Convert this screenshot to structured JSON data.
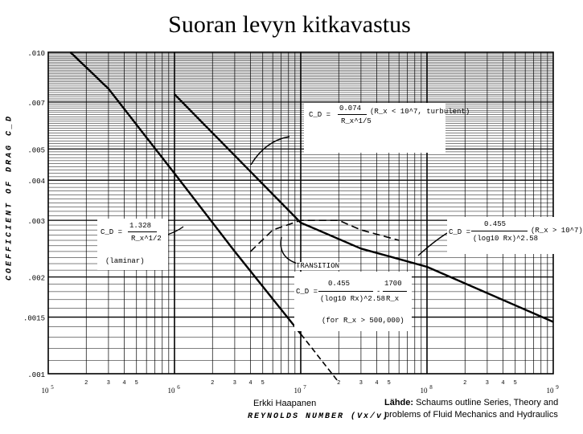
{
  "page": {
    "title": "Suoran levyn kitkavastus"
  },
  "chart_data": {
    "type": "line",
    "xscale": "log",
    "yscale": "log",
    "xlim": [
      100000,
      1000000000
    ],
    "ylim": [
      0.001,
      0.01
    ],
    "grid": true,
    "ylabel": "COEFFICIENT OF DRAG C_D",
    "xlabel": "REYNOLDS NUMBER (Vx/v)",
    "ytick_labels": [
      ".010",
      ".007",
      ".005",
      ".004",
      ".003",
      ".002",
      ".0015",
      ".001"
    ],
    "ytick_values": [
      0.01,
      0.007,
      0.005,
      0.004,
      0.003,
      0.002,
      0.0015,
      0.001
    ],
    "xtick_decades": [
      {
        "base": "10",
        "exp": "5",
        "value": 100000
      },
      {
        "base": "10",
        "exp": "6",
        "value": 1000000
      },
      {
        "base": "10",
        "exp": "7",
        "value": 10000000
      },
      {
        "base": "10",
        "exp": "8",
        "value": 100000000
      },
      {
        "base": "10",
        "exp": "9",
        "value": 1000000000
      }
    ],
    "xtick_minor_labels": [
      "2",
      "3",
      "4",
      "5"
    ],
    "series": [
      {
        "type": "laminar",
        "style": "solid",
        "x": [
          150000,
          300000,
          1000000,
          3000000,
          10000000
        ],
        "y": [
          0.01,
          0.0077,
          0.0042,
          0.0024,
          0.00133
        ]
      },
      {
        "type": "laminar-extension",
        "style": "dashed",
        "x": [
          10000000,
          20000000
        ],
        "y": [
          0.00133,
          0.00094
        ]
      },
      {
        "type": "turbulent",
        "style": "solid",
        "x": [
          1000000,
          10000000
        ],
        "y": [
          0.0074,
          0.00295
        ]
      },
      {
        "type": "turbulent-prandtl",
        "style": "solid",
        "x": [
          10000000,
          30000000,
          100000000,
          1000000000
        ],
        "y": [
          0.00295,
          0.00245,
          0.00215,
          0.00145
        ]
      },
      {
        "type": "transition",
        "style": "dashed",
        "x": [
          4000000,
          6000000,
          10000000,
          20000000,
          30000000,
          60000000
        ],
        "y": [
          0.0024,
          0.0028,
          0.003,
          0.003,
          0.0028,
          0.0026
        ]
      }
    ],
    "annotations": {
      "turbulent": {
        "lhs": "C_D =",
        "num": "0.074",
        "den": "R_x^1/5",
        "cond": "(R_x < 10^7, turbulent)"
      },
      "laminar": {
        "lhs": "C_D =",
        "num": "1.328",
        "den": "R_x^1/2",
        "cond": "(laminar)"
      },
      "prandtl": {
        "lhs": "C_D =",
        "num": "0.455",
        "den": "(log10 Rx)^2.58",
        "cond": "(R_x > 10^7)"
      },
      "transition_label": "TRANSITION",
      "transition": {
        "lhs": "C_D =",
        "num1": "0.455",
        "den1": "(log10 Rx)^2.58",
        "minus": "-",
        "num2": "1700",
        "den2": "R_x",
        "cond": "(for R_x > 500,000)"
      }
    }
  },
  "footer": {
    "author": "Erkki Haapanen",
    "source_bold": "Lähde:",
    "source_text": " Schaums outline Series, Theory and problems of  Fluid Mechanics and Hydraulics"
  }
}
